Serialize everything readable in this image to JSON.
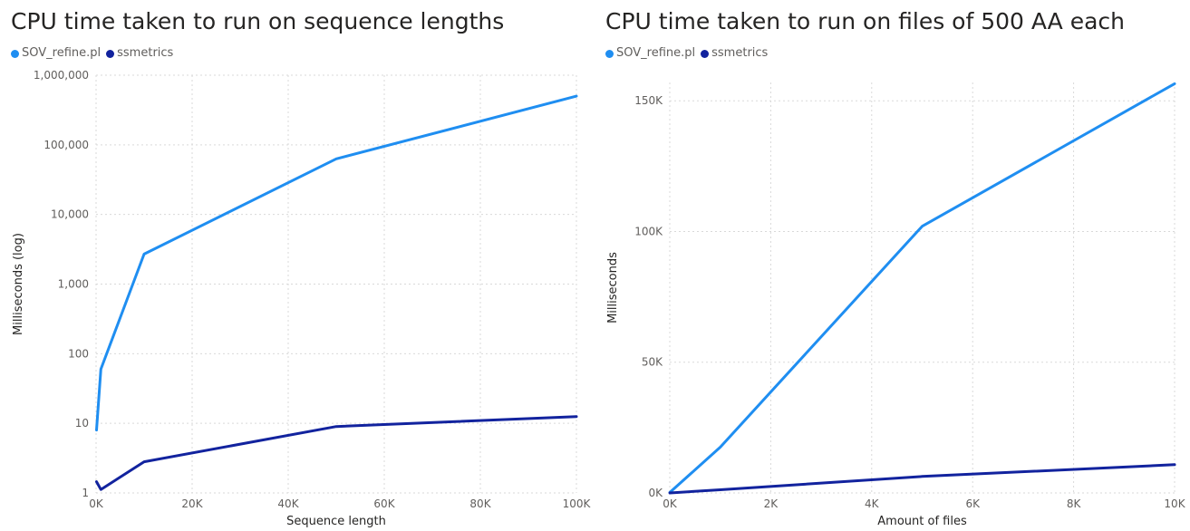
{
  "colors": {
    "sov": "#1f8ef1",
    "ssmetrics": "#12239e",
    "grid": "#d9d9d9"
  },
  "charts": [
    {
      "title": "CPU time taken to run on sequence lengths",
      "legend": [
        "SOV_refine.pl",
        "ssmetrics"
      ],
      "chart_data": {
        "type": "line",
        "title": "CPU time taken to run on sequence lengths",
        "xlabel": "Sequence length",
        "ylabel": "Milliseconds (log)",
        "yscale": "log",
        "xlim": [
          0,
          100000
        ],
        "ylim": [
          1,
          1000000
        ],
        "xticks": [
          0,
          20000,
          40000,
          60000,
          80000,
          100000
        ],
        "xtick_labels": [
          "0K",
          "20K",
          "40K",
          "60K",
          "80K",
          "100K"
        ],
        "yticks": [
          1,
          10,
          100,
          1000,
          10000,
          100000,
          1000000
        ],
        "ytick_labels": [
          "1",
          "10",
          "100",
          "1,000",
          "10,000",
          "100,000",
          "1,000,000"
        ],
        "series": [
          {
            "name": "SOV_refine.pl",
            "x": [
              100,
              1000,
              10000,
              50000,
              100000
            ],
            "y": [
              8,
              60,
              2700,
              63000,
              500000
            ]
          },
          {
            "name": "ssmetrics",
            "x": [
              100,
              1000,
              10000,
              50000,
              100000
            ],
            "y": [
              1.45,
              1.12,
              2.8,
              9,
              12.5
            ]
          }
        ]
      }
    },
    {
      "title": "CPU time taken to run on files of 500 AA each",
      "legend": [
        "SOV_refine.pl",
        "ssmetrics"
      ],
      "chart_data": {
        "type": "line",
        "title": "CPU time taken to run on files of 500 AA each",
        "xlabel": "Amount of files",
        "ylabel": "Milliseconds",
        "yscale": "linear",
        "xlim": [
          0,
          10000
        ],
        "ylim": [
          0,
          157000
        ],
        "xticks": [
          0,
          2000,
          4000,
          6000,
          8000,
          10000
        ],
        "xtick_labels": [
          "0K",
          "2K",
          "4K",
          "6K",
          "8K",
          "10K"
        ],
        "yticks": [
          0,
          50000,
          100000,
          150000
        ],
        "ytick_labels": [
          "0K",
          "50K",
          "100K",
          "150K"
        ],
        "series": [
          {
            "name": "SOV_refine.pl",
            "x": [
              1,
              1000,
              5000,
              10000
            ],
            "y": [
              200,
              17500,
              102000,
              156500
            ]
          },
          {
            "name": "ssmetrics",
            "x": [
              1,
              1000,
              5000,
              10000
            ],
            "y": [
              0,
              1200,
              6300,
              10800
            ]
          }
        ]
      }
    }
  ]
}
